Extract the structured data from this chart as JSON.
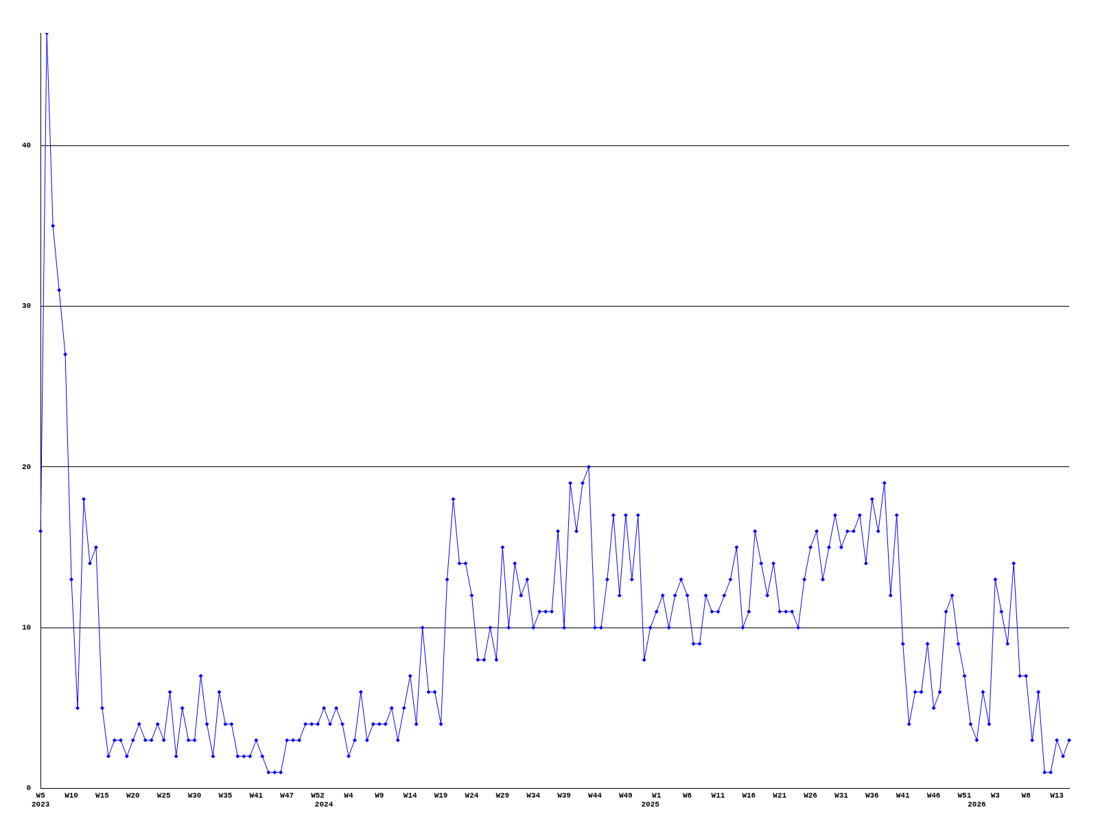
{
  "chart_data": {
    "type": "line",
    "categories": [
      "W5\n2023",
      null,
      null,
      null,
      null,
      "W10",
      null,
      null,
      null,
      null,
      "W15",
      null,
      null,
      null,
      null,
      "W20",
      null,
      null,
      null,
      null,
      "W25",
      null,
      null,
      null,
      null,
      "W30",
      null,
      null,
      null,
      null,
      "W35",
      null,
      null,
      null,
      null,
      "W41",
      null,
      null,
      null,
      null,
      "W47",
      null,
      null,
      null,
      null,
      "W52",
      "\n2024",
      null,
      null,
      null,
      "W4",
      null,
      null,
      null,
      null,
      "W9",
      null,
      null,
      null,
      null,
      "W14",
      null,
      null,
      null,
      null,
      "W19",
      null,
      null,
      null,
      null,
      "W24",
      null,
      null,
      null,
      null,
      "W29",
      null,
      null,
      null,
      null,
      "W34",
      null,
      null,
      null,
      null,
      "W39",
      null,
      null,
      null,
      null,
      "W44",
      null,
      null,
      null,
      null,
      "W49",
      null,
      null,
      null,
      "\n2025",
      "W1",
      null,
      null,
      null,
      null,
      "W6",
      null,
      null,
      null,
      null,
      "W11",
      null,
      null,
      null,
      null,
      "W16",
      null,
      null,
      null,
      null,
      "W21",
      null,
      null,
      null,
      null,
      "W26",
      null,
      null,
      null,
      null,
      "W31",
      null,
      null,
      null,
      null,
      "W36",
      null,
      null,
      null,
      null,
      "W41",
      null,
      null,
      null,
      null,
      "W46",
      null,
      null,
      null,
      null,
      "W51",
      null,
      "\n2026",
      null,
      null,
      "W3",
      null,
      null,
      null,
      null,
      "W8",
      null,
      null,
      null,
      null,
      "W13",
      null,
      null
    ],
    "values": [
      16,
      47,
      35,
      31,
      27,
      13,
      5,
      18,
      14,
      15,
      5,
      2,
      3,
      3,
      2,
      3,
      4,
      3,
      3,
      4,
      3,
      6,
      2,
      5,
      3,
      3,
      7,
      4,
      2,
      6,
      4,
      4,
      2,
      2,
      2,
      3,
      2,
      1,
      1,
      1,
      3,
      3,
      3,
      4,
      4,
      4,
      5,
      4,
      5,
      4,
      2,
      3,
      6,
      3,
      4,
      4,
      4,
      5,
      3,
      5,
      7,
      4,
      10,
      6,
      6,
      4,
      13,
      18,
      14,
      14,
      12,
      8,
      8,
      10,
      8,
      15,
      10,
      14,
      12,
      13,
      10,
      11,
      11,
      11,
      16,
      10,
      19,
      16,
      19,
      20,
      10,
      10,
      13,
      17,
      12,
      17,
      13,
      17,
      8,
      10,
      11,
      12,
      10,
      12,
      13,
      12,
      9,
      9,
      12,
      11,
      11,
      12,
      13,
      15,
      10,
      11,
      16,
      14,
      12,
      14,
      11,
      11,
      11,
      10,
      13,
      15,
      16,
      13,
      15,
      17,
      15,
      16,
      16,
      17,
      14,
      18,
      16,
      19,
      12,
      17,
      9,
      4,
      6,
      6,
      9,
      5,
      6,
      11,
      12,
      9,
      7,
      4,
      3,
      6,
      4,
      13,
      11,
      9,
      14,
      7,
      7,
      3,
      6,
      1,
      1,
      3,
      2,
      3
    ],
    "color": "#0000ff",
    "ylim": [
      0,
      47
    ],
    "yticks": [
      0,
      10,
      20,
      30,
      40
    ],
    "grid": "y",
    "marker": "diamond",
    "line_style": "solid"
  }
}
